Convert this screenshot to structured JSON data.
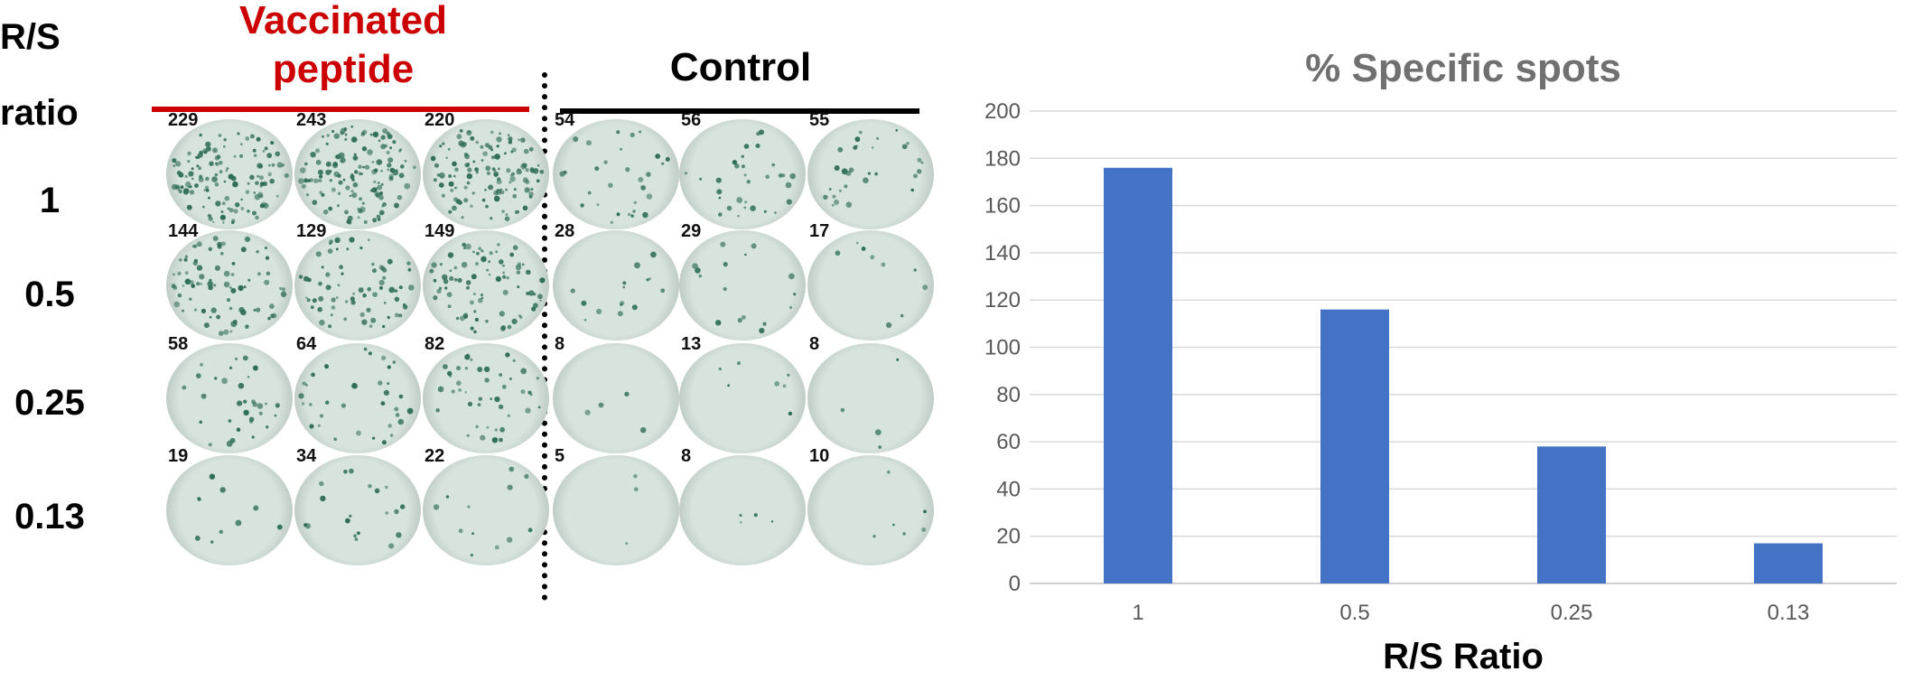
{
  "figure": {
    "row_header": [
      "R/S",
      "ratio"
    ],
    "row_labels": [
      "1",
      "0.5",
      "0.25",
      "0.13"
    ],
    "groups": {
      "vaccinated": {
        "title_lines": [
          "Vaccinated",
          "peptide"
        ],
        "color": "#cc0000"
      },
      "control": {
        "title": "Control",
        "color": "#000000"
      }
    },
    "well_counts": [
      [
        "229",
        "243",
        "220",
        "54",
        "56",
        "55"
      ],
      [
        "144",
        "129",
        "149",
        "28",
        "29",
        "17"
      ],
      [
        "58",
        "64",
        "82",
        "8",
        "13",
        "8"
      ],
      [
        "19",
        "34",
        "22",
        "5",
        "8",
        "10"
      ]
    ],
    "well_colors": {
      "plate": "#d7e3dd",
      "spot": "#2f6e56",
      "rim": "#9aa9a3"
    }
  },
  "chart_data": {
    "type": "bar",
    "title": "% Specific spots",
    "xlabel": "R/S Ratio",
    "ylabel": "",
    "categories": [
      "1",
      "0.5",
      "0.25",
      "0.13"
    ],
    "values": [
      176,
      116,
      58,
      17
    ],
    "ylim": [
      0,
      200
    ],
    "yticks": [
      0,
      20,
      40,
      60,
      80,
      100,
      120,
      140,
      160,
      180,
      200
    ],
    "grid": true,
    "bar_color": "#4472c4",
    "title_color": "#707070"
  }
}
